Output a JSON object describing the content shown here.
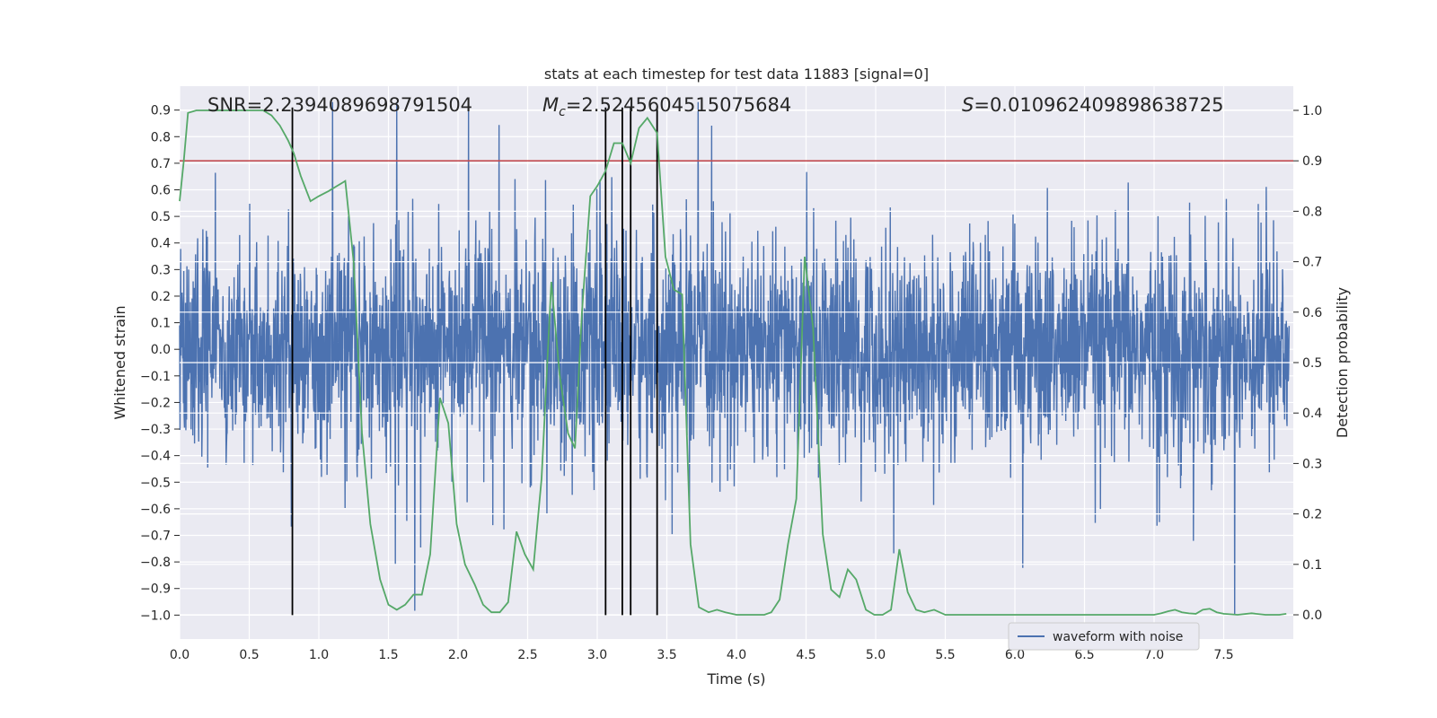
{
  "chart_data": {
    "type": "line",
    "title": "stats at each timestep for test data 11883 [signal=0]",
    "xlabel": "Time (s)",
    "ylabel": "Whitened strain",
    "y2label": "Detection probability",
    "xlim": [
      0.0,
      8.0
    ],
    "ylim": [
      -1.09,
      0.99
    ],
    "y2lim": [
      -0.048,
      1.048
    ],
    "xticks": [
      "0.0",
      "0.5",
      "1.0",
      "1.5",
      "2.0",
      "2.5",
      "3.0",
      "3.5",
      "4.0",
      "4.5",
      "5.0",
      "5.5",
      "6.0",
      "6.5",
      "7.0",
      "7.5"
    ],
    "yticks": [
      "0.9",
      "0.8",
      "0.7",
      "0.6",
      "0.5",
      "0.4",
      "0.3",
      "0.2",
      "0.1",
      "0.0",
      "−0.1",
      "−0.2",
      "−0.3",
      "−0.4",
      "−0.5",
      "−0.6",
      "−0.7",
      "−0.8",
      "−0.9",
      "−1.0"
    ],
    "y2ticks": [
      "1.0",
      "0.9",
      "0.8",
      "0.7",
      "0.6",
      "0.5",
      "0.4",
      "0.3",
      "0.2",
      "0.1",
      "0.0"
    ],
    "annotations": {
      "snr": "SNR=2.2394089698791504",
      "mc_symbol": "M",
      "mc_sub": "c",
      "mc_value": "=2.5245604515075684",
      "s_symbol": "S",
      "s_value": "=0.010962409898638725"
    },
    "legend": {
      "label": "waveform with noise",
      "placement": "lower-right"
    },
    "threshold": {
      "value": 0.9,
      "axis": "y2",
      "color": "#c44e52"
    },
    "vlines_x": [
      0.81,
      3.06,
      3.18,
      3.24,
      3.43
    ],
    "waveform": {
      "name": "waveform with noise",
      "color": "#4c72b0",
      "samples": 3200,
      "seed": 11883,
      "noise_envelope": [
        -0.45,
        0.45
      ],
      "extreme_range": [
        -1.0,
        0.93
      ]
    },
    "probability": {
      "name": "Detection probability",
      "color": "#55a868",
      "x": [
        0.0,
        0.03,
        0.06,
        0.12,
        0.2,
        0.3,
        0.4,
        0.5,
        0.6,
        0.66,
        0.72,
        0.78,
        0.82,
        0.87,
        0.94,
        1.0,
        1.07,
        1.13,
        1.19,
        1.25,
        1.31,
        1.37,
        1.44,
        1.5,
        1.56,
        1.62,
        1.68,
        1.74,
        1.8,
        1.87,
        1.93,
        1.99,
        2.05,
        2.12,
        2.18,
        2.24,
        2.3,
        2.36,
        2.42,
        2.48,
        2.54,
        2.6,
        2.67,
        2.73,
        2.79,
        2.84,
        2.89,
        2.95,
        3.0,
        3.06,
        3.12,
        3.18,
        3.24,
        3.3,
        3.36,
        3.43,
        3.49,
        3.55,
        3.61,
        3.67,
        3.73,
        3.8,
        3.86,
        3.92,
        4.0,
        4.1,
        4.2,
        4.25,
        4.31,
        4.37,
        4.43,
        4.49,
        4.55,
        4.62,
        4.68,
        4.74,
        4.8,
        4.86,
        4.93,
        4.99,
        5.05,
        5.11,
        5.17,
        5.23,
        5.29,
        5.35,
        5.42,
        5.5,
        5.6,
        5.7,
        5.8,
        6.0,
        6.5,
        7.0,
        7.05,
        7.1,
        7.15,
        7.2,
        7.25,
        7.3,
        7.35,
        7.4,
        7.45,
        7.5,
        7.6,
        7.7,
        7.8,
        7.9,
        7.95
      ],
      "values": [
        0.82,
        0.9,
        0.995,
        1.0,
        1.0,
        1.0,
        1.0,
        1.0,
        1.0,
        0.99,
        0.97,
        0.94,
        0.915,
        0.87,
        0.82,
        0.83,
        0.84,
        0.85,
        0.86,
        0.7,
        0.36,
        0.18,
        0.07,
        0.02,
        0.01,
        0.02,
        0.04,
        0.04,
        0.12,
        0.43,
        0.38,
        0.18,
        0.1,
        0.06,
        0.02,
        0.005,
        0.005,
        0.025,
        0.165,
        0.12,
        0.09,
        0.27,
        0.66,
        0.475,
        0.36,
        0.33,
        0.6,
        0.83,
        0.85,
        0.88,
        0.935,
        0.935,
        0.895,
        0.965,
        0.985,
        0.955,
        0.71,
        0.645,
        0.635,
        0.14,
        0.015,
        0.005,
        0.01,
        0.005,
        0.0,
        0.0,
        0.0,
        0.005,
        0.03,
        0.14,
        0.23,
        0.71,
        0.57,
        0.16,
        0.05,
        0.035,
        0.09,
        0.07,
        0.01,
        0.0,
        0.0,
        0.01,
        0.13,
        0.045,
        0.01,
        0.005,
        0.01,
        0.0,
        0.0,
        0.0,
        0.0,
        0.0,
        0.0,
        0.0,
        0.003,
        0.007,
        0.01,
        0.005,
        0.003,
        0.002,
        0.01,
        0.012,
        0.005,
        0.002,
        0.0,
        0.003,
        0.0,
        0.0,
        0.002
      ]
    }
  }
}
